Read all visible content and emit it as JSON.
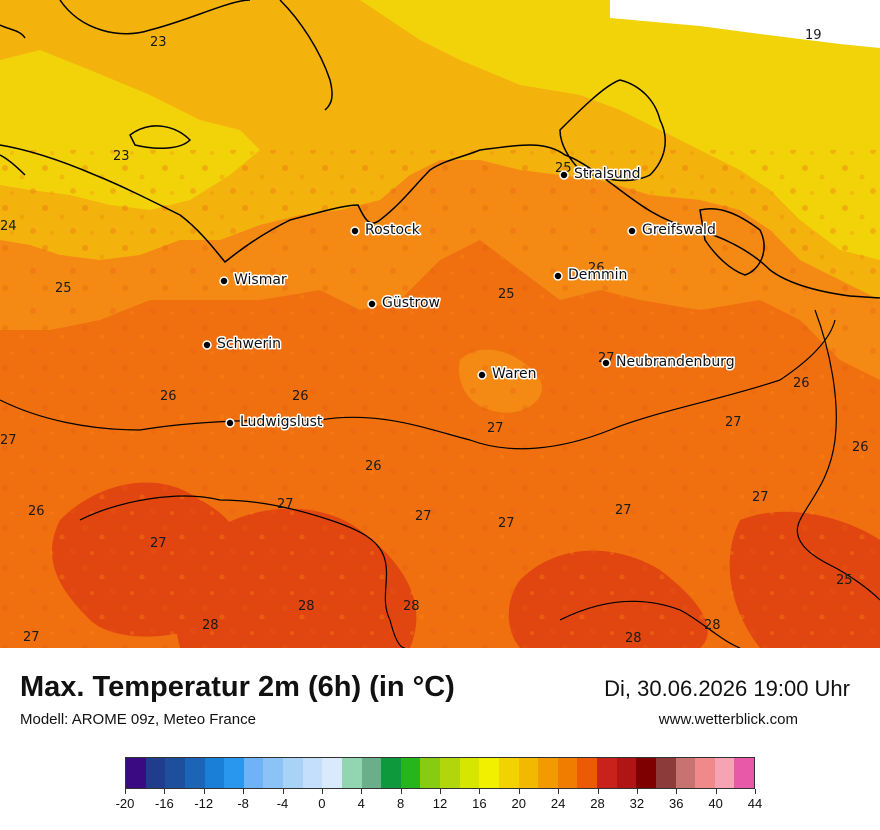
{
  "title": "Max. Temperatur 2m (6h) (in °C)",
  "model": "Modell: AROME 09z, Meteo France",
  "datetime": "Di, 30.06.2026 19:00 Uhr",
  "website": "www.wetterblick.com",
  "cities": [
    {
      "name": "Stralsund"
    },
    {
      "name": "Rostock"
    },
    {
      "name": "Greifswald"
    },
    {
      "name": "Wismar"
    },
    {
      "name": "Demmin"
    },
    {
      "name": "Güstrow"
    },
    {
      "name": "Schwerin"
    },
    {
      "name": "Neubrandenburg"
    },
    {
      "name": "Waren"
    },
    {
      "name": "Ludwigslust"
    }
  ],
  "temperature_labels": [
    "23",
    "19",
    "23",
    "24",
    "25",
    "25",
    "26",
    "25",
    "27",
    "26",
    "26",
    "27",
    "27",
    "26",
    "26",
    "27",
    "27",
    "26",
    "27",
    "27",
    "27",
    "26",
    "27",
    "28",
    "28",
    "28",
    "27",
    "28",
    "28",
    "27",
    "25"
  ],
  "legend": {
    "ticks": [
      "-20",
      "-16",
      "-12",
      "-8",
      "-4",
      "0",
      "4",
      "8",
      "12",
      "16",
      "20",
      "24",
      "28",
      "32",
      "36",
      "40",
      "44"
    ],
    "colors": [
      "#3a0a82",
      "#1f3d8c",
      "#1e4f9c",
      "#1c64b5",
      "#1a7fd6",
      "#2a97ee",
      "#6fb2f5",
      "#8cc3f6",
      "#a9d2f7",
      "#c4dffb",
      "#d9eafc",
      "#93d5b1",
      "#6aaf8a",
      "#0e9a3c",
      "#27b51c",
      "#88cc12",
      "#b2d60c",
      "#d7e600",
      "#f0f000",
      "#f2d200",
      "#f3b800",
      "#f39a00",
      "#f07c00",
      "#ec5a06",
      "#c8221a",
      "#b01414",
      "#7f0000",
      "#8c3a3a",
      "#c87272",
      "#f08a8a",
      "#f6a4b4",
      "#e85aa8"
    ]
  }
}
